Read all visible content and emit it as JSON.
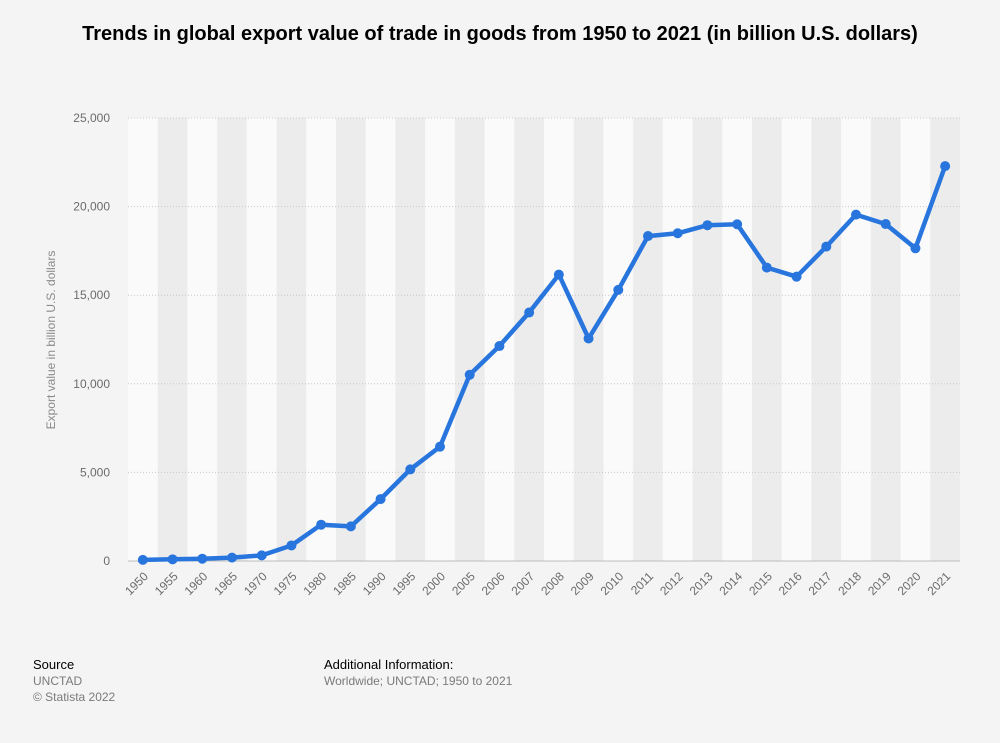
{
  "chart_data": {
    "type": "line",
    "title": "Trends in global export value of trade in goods from 1950 to 2021 (in billion U.S. dollars)",
    "xlabel": "",
    "ylabel": "Export value in billion U.S. dollars",
    "categories": [
      "1950",
      "1955",
      "1960",
      "1965",
      "1970",
      "1975",
      "1980",
      "1985",
      "1990",
      "1995",
      "2000",
      "2005",
      "2006",
      "2007",
      "2008",
      "2009",
      "2010",
      "2011",
      "2012",
      "2013",
      "2014",
      "2015",
      "2016",
      "2017",
      "2018",
      "2019",
      "2020",
      "2021"
    ],
    "series": [
      {
        "values": [
          62,
          94,
          130,
          190,
          318,
          877,
          2049,
          1954,
          3495,
          5168,
          6452,
          10509,
          12131,
          14022,
          16160,
          12555,
          15301,
          18338,
          18496,
          18950,
          19005,
          16555,
          16045,
          17743,
          19548,
          19015,
          17648,
          22284
        ]
      }
    ],
    "ylim": [
      0,
      25000
    ],
    "yticks": [
      "0",
      "5,000",
      "10,000",
      "15,000",
      "20,000",
      "25,000"
    ],
    "ytick_values": [
      0,
      5000,
      10000,
      15000,
      20000,
      25000
    ],
    "grid": true,
    "line_color": "#2876dd"
  },
  "footer": {
    "source_heading": "Source",
    "source_lines": [
      "UNCTAD",
      "© Statista 2022"
    ],
    "info_heading": "Additional Information:",
    "info_text": "Worldwide; UNCTAD; 1950 to 2021"
  }
}
